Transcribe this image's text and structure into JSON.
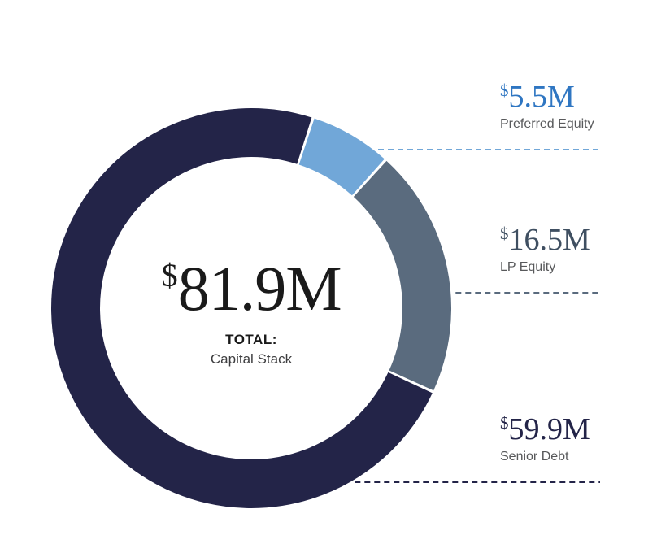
{
  "chart_data": {
    "type": "donut",
    "title": "Capital Stack",
    "currency_symbol": "$",
    "total": 81.9,
    "center": {
      "value": "81.9M",
      "label_line1": "TOTAL:",
      "label_line2": "Capital Stack",
      "text_color": "#1a1a1a"
    },
    "segments": [
      {
        "name": "Preferred Equity",
        "value": 5.5,
        "display": "5.5M",
        "color": "#71A7D8",
        "text_color": "#2F76C2"
      },
      {
        "name": "LP Equity",
        "value": 16.5,
        "display": "16.5M",
        "color": "#5A6B7E",
        "text_color": "#3F4F61"
      },
      {
        "name": "Senior Debt",
        "value": 59.9,
        "display": "59.9M",
        "color": "#232448",
        "text_color": "#232448"
      }
    ],
    "start_angle_deg": 18,
    "gap_deg": 0.8,
    "legend_position": "right",
    "label_text_color": "#58595B",
    "background": "#FFFFFF"
  }
}
